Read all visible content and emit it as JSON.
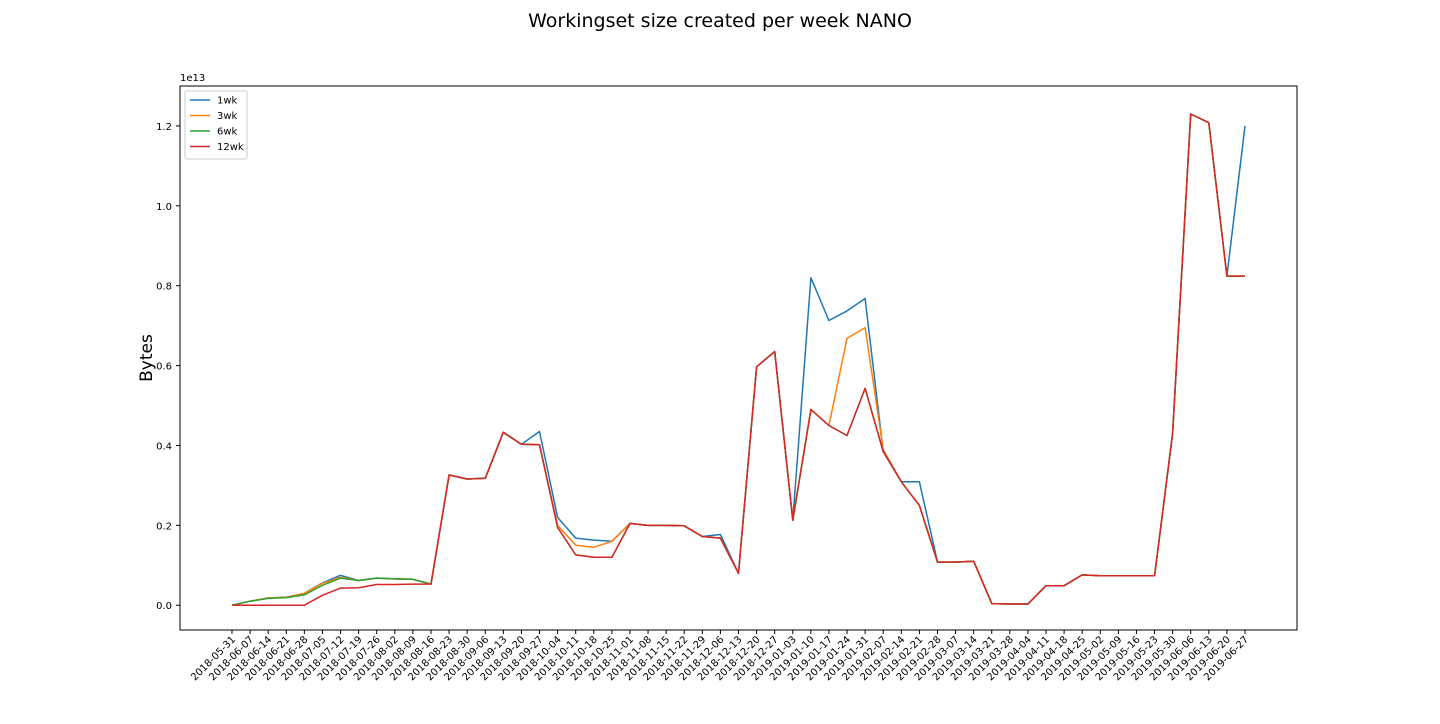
{
  "chart_data": {
    "type": "line",
    "title": "Workingset size created per week NANO",
    "xlabel": "",
    "ylabel": "Bytes",
    "y_scale_label": "1e13",
    "y_multiplier": 10000000000000,
    "ylim": [
      -0.062,
      1.3
    ],
    "yticks": [
      0.0,
      0.2,
      0.4,
      0.6,
      0.8,
      1.0,
      1.2
    ],
    "ytick_labels": [
      "0.0",
      "0.2",
      "0.4",
      "0.6",
      "0.8",
      "1.0",
      "1.2"
    ],
    "grid": false,
    "legend_position": "top-left",
    "categories": [
      "2018-05-31",
      "2018-06-07",
      "2018-06-14",
      "2018-06-21",
      "2018-06-28",
      "2018-07-05",
      "2018-07-12",
      "2018-07-19",
      "2018-07-26",
      "2018-08-02",
      "2018-08-09",
      "2018-08-16",
      "2018-08-23",
      "2018-08-30",
      "2018-09-06",
      "2018-09-13",
      "2018-09-20",
      "2018-09-27",
      "2018-10-04",
      "2018-10-11",
      "2018-10-18",
      "2018-10-25",
      "2018-11-01",
      "2018-11-08",
      "2018-11-15",
      "2018-11-22",
      "2018-11-29",
      "2018-12-06",
      "2018-12-13",
      "2018-12-20",
      "2018-12-27",
      "2019-01-03",
      "2019-01-10",
      "2019-01-17",
      "2019-01-24",
      "2019-01-31",
      "2019-02-07",
      "2019-02-14",
      "2019-02-21",
      "2019-02-28",
      "2019-03-07",
      "2019-03-14",
      "2019-03-21",
      "2019-03-28",
      "2019-04-04",
      "2019-04-11",
      "2019-04-18",
      "2019-04-25",
      "2019-05-02",
      "2019-05-09",
      "2019-05-16",
      "2019-05-23",
      "2019-05-30",
      "2019-06-06",
      "2019-06-13",
      "2019-06-20",
      "2019-06-27"
    ],
    "series": [
      {
        "name": "1wk",
        "color": "#1f77b4",
        "values": [
          0.0,
          0.01,
          0.018,
          0.02,
          0.03,
          0.056,
          0.075,
          0.062,
          0.068,
          0.066,
          0.065,
          0.053,
          0.326,
          0.316,
          0.318,
          0.433,
          0.403,
          0.435,
          0.22,
          0.168,
          0.163,
          0.16,
          0.205,
          0.2,
          0.2,
          0.199,
          0.172,
          0.177,
          0.08,
          0.597,
          0.635,
          0.213,
          0.82,
          0.713,
          0.737,
          0.768,
          0.385,
          0.309,
          0.309,
          0.108,
          0.108,
          0.11,
          0.004,
          0.003,
          0.003,
          0.049,
          0.049,
          0.076,
          0.074,
          0.074,
          0.074,
          0.074,
          0.43,
          1.23,
          1.208,
          0.824,
          1.2
        ]
      },
      {
        "name": "3wk",
        "color": "#ff7f0e",
        "values": [
          0.0,
          0.01,
          0.018,
          0.02,
          0.03,
          0.055,
          0.07,
          0.062,
          0.068,
          0.066,
          0.065,
          0.053,
          0.326,
          0.316,
          0.318,
          0.433,
          0.403,
          0.402,
          0.2,
          0.15,
          0.145,
          0.16,
          0.205,
          0.2,
          0.2,
          0.199,
          0.172,
          0.168,
          0.08,
          0.597,
          0.635,
          0.213,
          0.49,
          0.45,
          0.668,
          0.695,
          0.39,
          0.309,
          0.25,
          0.108,
          0.108,
          0.11,
          0.004,
          0.003,
          0.003,
          0.049,
          0.049,
          0.076,
          0.074,
          0.074,
          0.074,
          0.074,
          0.43,
          1.23,
          1.208,
          0.824,
          0.824
        ]
      },
      {
        "name": "6wk",
        "color": "#2ca02c",
        "values": [
          0.0,
          0.01,
          0.017,
          0.019,
          0.026,
          0.05,
          0.068,
          0.062,
          0.068,
          0.066,
          0.065,
          0.053,
          0.326,
          0.316,
          0.318,
          0.433,
          0.403,
          0.402,
          0.195,
          0.126,
          0.12,
          0.12,
          0.205,
          0.2,
          0.2,
          0.199,
          0.172,
          0.168,
          0.08,
          0.597,
          0.635,
          0.213,
          0.49,
          0.45,
          0.425,
          0.543,
          0.385,
          0.309,
          0.25,
          0.108,
          0.108,
          0.11,
          0.004,
          0.003,
          0.003,
          0.049,
          0.049,
          0.076,
          0.074,
          0.074,
          0.074,
          0.074,
          0.43,
          1.23,
          1.208,
          0.824,
          0.824
        ]
      },
      {
        "name": "12wk",
        "color": "#d62728",
        "values": [
          0.0,
          0.0,
          0.0,
          0.0,
          0.0,
          0.025,
          0.043,
          0.044,
          0.052,
          0.052,
          0.053,
          0.053,
          0.326,
          0.316,
          0.318,
          0.433,
          0.403,
          0.402,
          0.195,
          0.126,
          0.12,
          0.12,
          0.205,
          0.2,
          0.2,
          0.199,
          0.172,
          0.168,
          0.08,
          0.597,
          0.635,
          0.213,
          0.49,
          0.45,
          0.425,
          0.543,
          0.385,
          0.309,
          0.25,
          0.108,
          0.108,
          0.11,
          0.004,
          0.003,
          0.003,
          0.049,
          0.049,
          0.076,
          0.074,
          0.074,
          0.074,
          0.074,
          0.43,
          1.23,
          1.208,
          0.824,
          0.824
        ]
      }
    ]
  }
}
